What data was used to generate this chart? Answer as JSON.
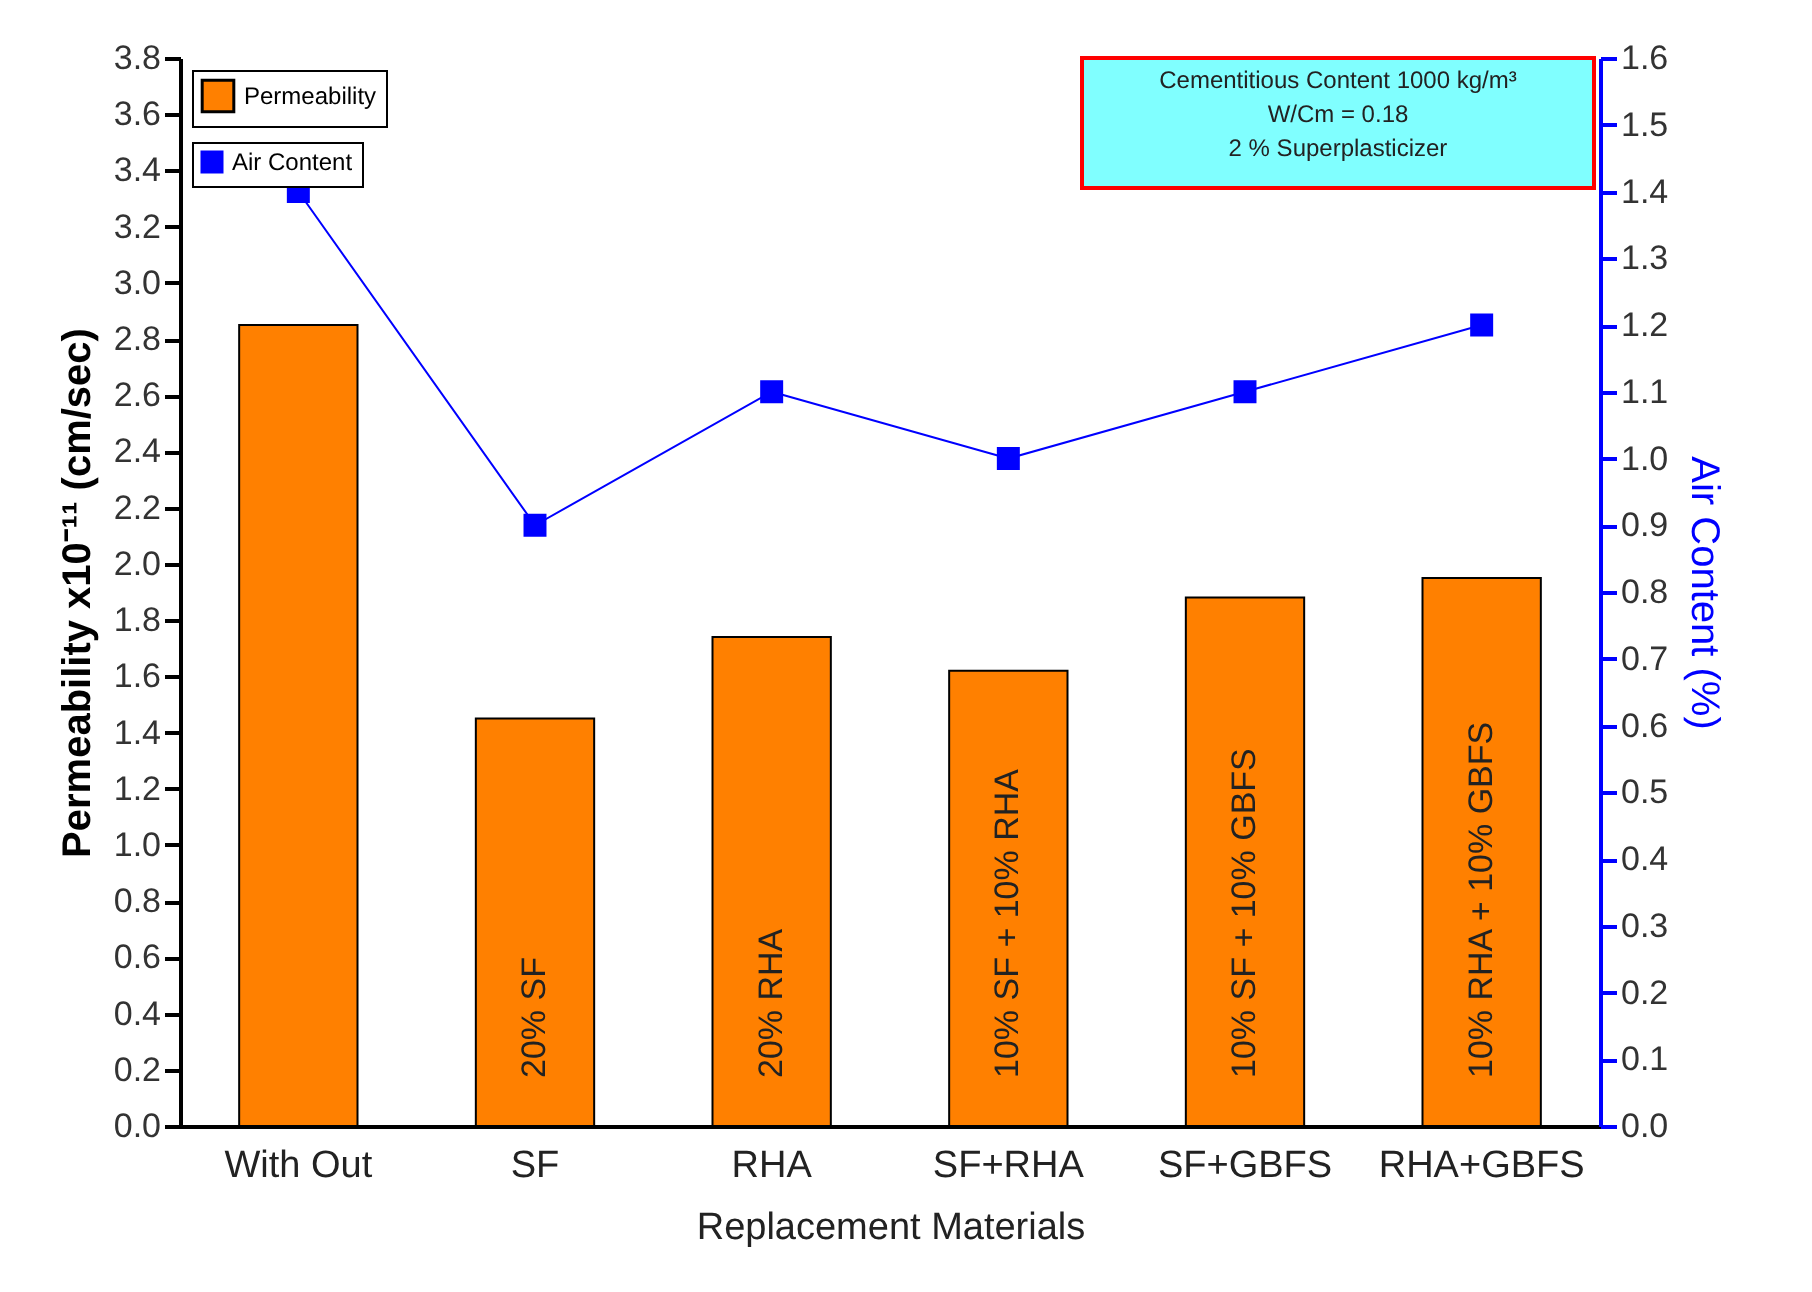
{
  "chart_data": {
    "type": "bar",
    "xlabel": "Replacement Materials",
    "ylabel": "Permeability x10⁻¹¹  (cm/sec)",
    "y2label": "Air Content  (%)",
    "categories": [
      "With Out",
      "SF",
      "RHA",
      "SF+RHA",
      "SF+GBFS",
      "RHA+GBFS"
    ],
    "series": [
      {
        "name": "Permeability",
        "color": "#ff8000",
        "values": [
          2.85,
          1.45,
          1.74,
          1.62,
          1.88,
          1.95
        ]
      },
      {
        "name": "Air Content",
        "type": "line",
        "axis": "y2",
        "color": "#0000ff",
        "marker": "square",
        "values": [
          1.4,
          0.9,
          1.1,
          1.0,
          1.1,
          1.2
        ]
      }
    ],
    "ylim": [
      0,
      3.8
    ],
    "yticks": [
      {
        "value": 0,
        "label": "0.0"
      },
      0.2,
      0.4,
      0.6,
      0.8,
      {
        "value": 1,
        "label": "1.0"
      },
      1.2,
      1.4,
      1.6,
      1.8,
      {
        "value": 2,
        "label": "2.0"
      },
      2.2,
      2.4,
      2.6,
      2.8,
      {
        "value": 3,
        "label": "3.0"
      },
      3.2,
      3.4,
      3.6,
      3.8
    ],
    "y2lim": [
      0,
      1.6
    ],
    "y2ticks": [
      {
        "value": 0,
        "label": "0.0"
      },
      0.1,
      0.2,
      0.3,
      0.4,
      0.5,
      0.6,
      0.7,
      0.8,
      0.9,
      {
        "value": 1,
        "label": "1.0"
      },
      1.1,
      1.2,
      1.3,
      1.4,
      1.5,
      1.6
    ],
    "legend": "top left",
    "annotations": [
      "20% SF",
      "20% RHA",
      "10% SF + 10% RHA",
      "10% SF + 10% GBFS",
      "10% RHA + 10% GBFS",
      "Cementitious Content 1000 kg/m³",
      "W/Cm = 0.18",
      "2 % Superplasticizer"
    ]
  }
}
